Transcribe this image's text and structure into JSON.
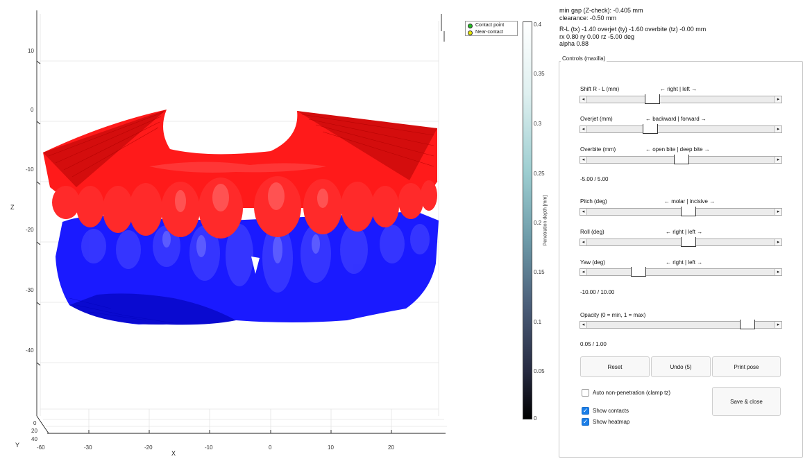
{
  "viewport": {
    "z_axis_label": "Z",
    "x_axis_label": "X",
    "y_axis_label": "Y",
    "z_ticks": [
      "10",
      "0",
      "-10",
      "-20",
      "-30",
      "-40"
    ],
    "x_ticks": [
      "-60",
      "-30",
      "-20",
      "-10",
      "0",
      "10",
      "20"
    ],
    "y_ticks": [
      "0",
      "20",
      "40"
    ],
    "maxilla_color": "#ff1a1a",
    "mandible_color": "#1a1aff"
  },
  "legend": {
    "items": [
      {
        "label": "Contact point",
        "color": "#22bb22"
      },
      {
        "label": "Near-contact",
        "color": "#e6e600"
      }
    ]
  },
  "colorbar": {
    "label": "Penetration depth [mm]",
    "ticks": [
      "0.4",
      "0.35",
      "0.3",
      "0.25",
      "0.2",
      "0.15",
      "0.1",
      "0.05",
      "0"
    ]
  },
  "info": {
    "line1": "min gap (Z-check): -0.405 mm",
    "line2": "clearance: -0.50 mm",
    "line3": "R-L (tx) -1.40   overjet (ty) -1.60   overbite (tz) -0.00  mm",
    "line4": "rx 0.80   ry 0.00   rz -5.00   deg",
    "line5": "alpha 0.88"
  },
  "controls": {
    "title": "Controls (maxilla)",
    "shift": {
      "label": "Shift R - L (mm)",
      "hint": "← right | left →",
      "value_fraction": 0.33
    },
    "overjet": {
      "label": "Overjet (mm)",
      "hint": "← backward | forward →",
      "value_fraction": 0.32
    },
    "overbite": {
      "label": "Overbite (mm)",
      "hint": "← open bite | deep bite →",
      "value_fraction": 0.5
    },
    "trans_range": "-5.00 / 5.00",
    "pitch": {
      "label": "Pitch (deg)",
      "hint": "← molar | incisive →",
      "value_fraction": 0.54
    },
    "roll": {
      "label": "Roll (deg)",
      "hint": "← right | left →",
      "value_fraction": 0.54
    },
    "yaw": {
      "label": "Yaw (deg)",
      "hint": "← right | left →",
      "value_fraction": 0.25
    },
    "rot_range": "-10.00 / 10.00",
    "opacity": {
      "label": "Opacity (0 = min, 1 = max)",
      "value_fraction": 0.88
    },
    "opacity_range": "0.05 / 1.00",
    "buttons": {
      "reset": "Reset",
      "undo": "Undo (5)",
      "print": "Print pose",
      "save": "Save & close"
    },
    "checkboxes": {
      "auto": {
        "label": "Auto non-penetration (clamp tz)",
        "checked": false
      },
      "contacts": {
        "label": "Show contacts",
        "checked": true
      },
      "heatmap": {
        "label": "Show heatmap",
        "checked": true
      }
    }
  }
}
